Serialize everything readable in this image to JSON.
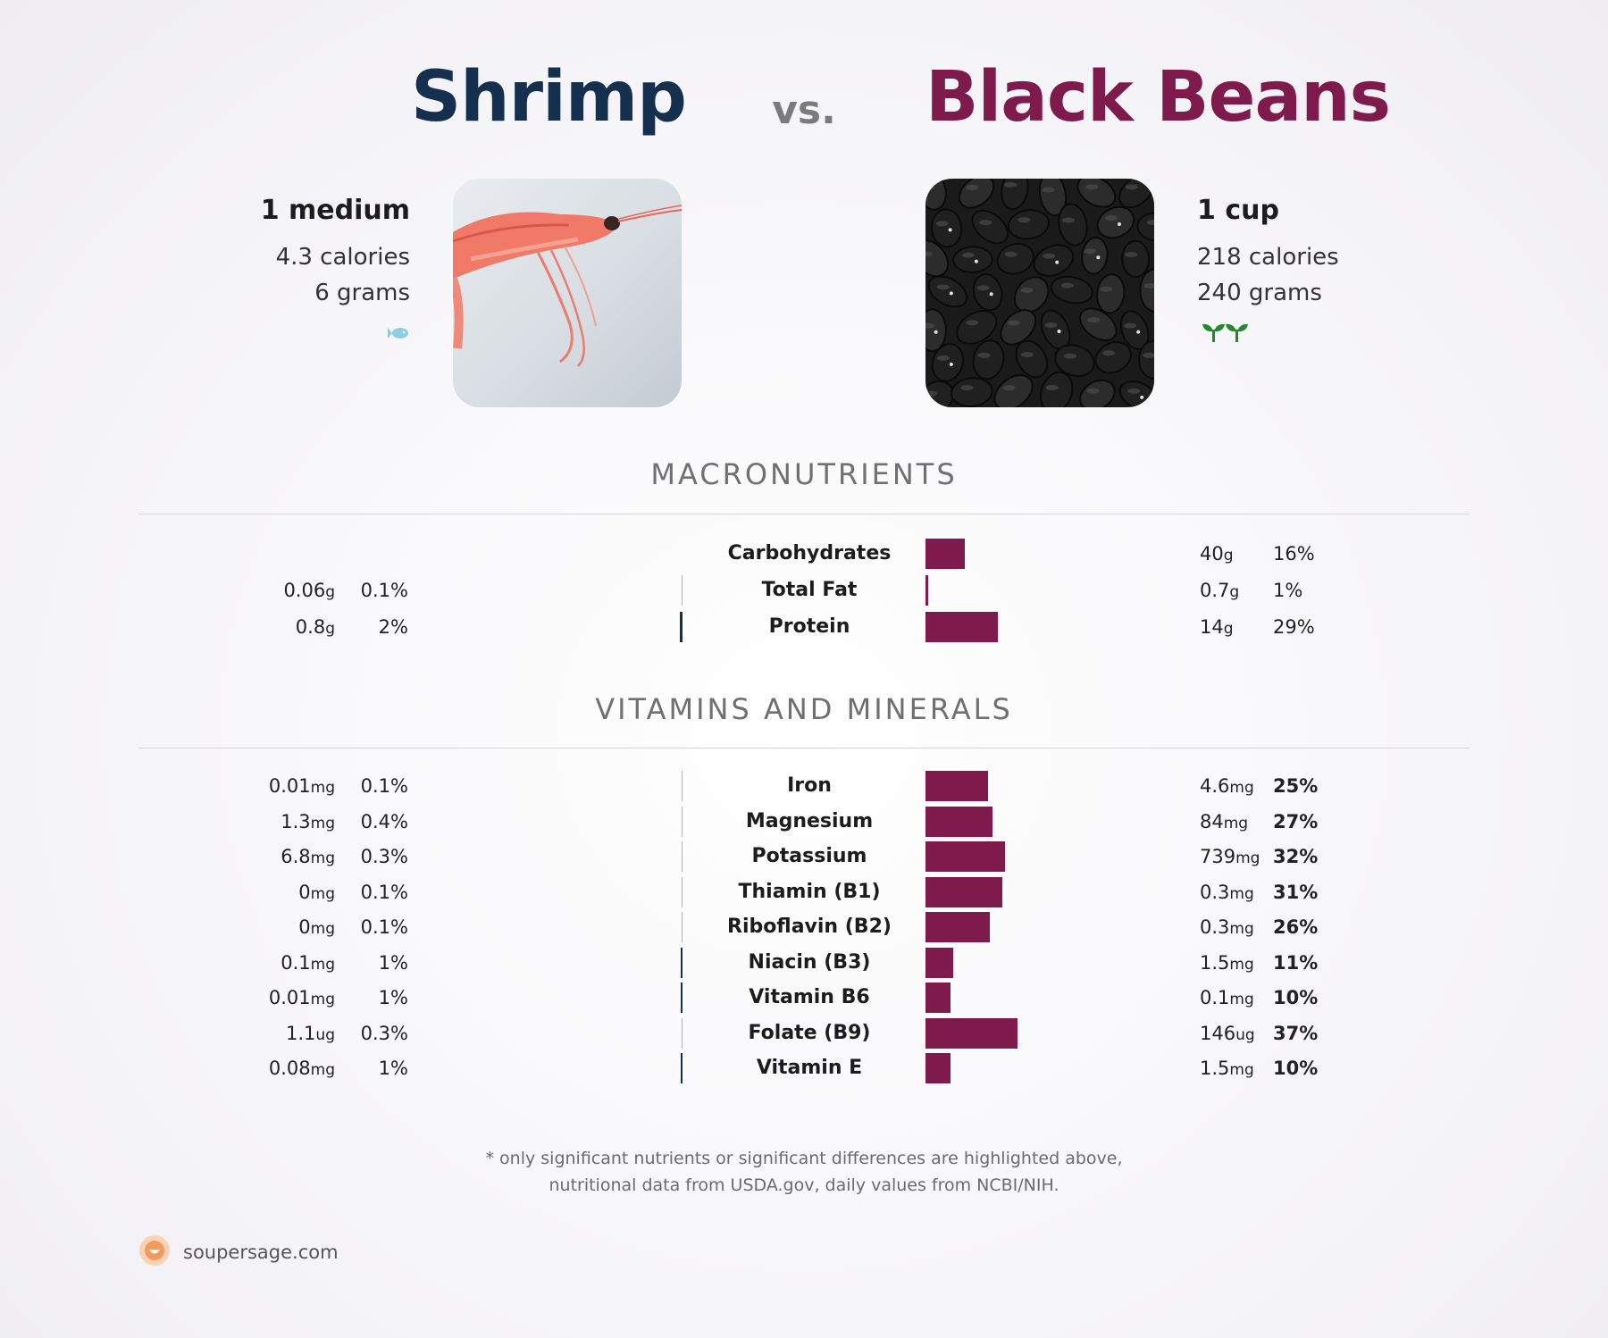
{
  "header": {
    "left_food": "Shrimp",
    "vs": "vs.",
    "right_food": "Black Beans"
  },
  "left": {
    "portion": "1 medium",
    "calories": "4.3 calories",
    "grams": "6 grams",
    "icon": "fish-icon",
    "image": "shrimp-photo"
  },
  "right": {
    "portion": "1 cup",
    "calories": "218 calories",
    "grams": "240 grams",
    "icon": "sprout-icon",
    "image": "black-beans-photo"
  },
  "sections": {
    "macros_title": "MACRONUTRIENTS",
    "vitamins_title": "VITAMINS AND MINERALS"
  },
  "colors": {
    "left_accent": "#15304f",
    "right_accent": "#7f1a4c"
  },
  "chart_data": [
    {
      "type": "bar",
      "title": "MACRONUTRIENTS",
      "categories": [
        "Carbohydrates",
        "Total Fat",
        "Protein"
      ],
      "series": [
        {
          "name": "Shrimp",
          "amounts": [
            "",
            "0.06",
            "0.8"
          ],
          "units": [
            "",
            "g",
            "g"
          ],
          "pct_labels": [
            "",
            "0.1%",
            "2%"
          ],
          "values": [
            0,
            0.1,
            2
          ]
        },
        {
          "name": "Black Beans",
          "amounts": [
            "40",
            "0.7",
            "14"
          ],
          "units": [
            "g",
            "g",
            "g"
          ],
          "pct_labels": [
            "16%",
            "1%",
            "29%"
          ],
          "values": [
            16,
            1,
            29
          ]
        }
      ]
    },
    {
      "type": "bar",
      "title": "VITAMINS AND MINERALS",
      "categories": [
        "Iron",
        "Magnesium",
        "Potassium",
        "Thiamin (B1)",
        "Riboflavin (B2)",
        "Niacin (B3)",
        "Vitamin B6",
        "Folate (B9)",
        "Vitamin E"
      ],
      "series": [
        {
          "name": "Shrimp",
          "amounts": [
            "0.01",
            "1.3",
            "6.8",
            "0",
            "0",
            "0.1",
            "0.01",
            "1.1",
            "0.08"
          ],
          "units": [
            "mg",
            "mg",
            "mg",
            "mg",
            "mg",
            "mg",
            "mg",
            "ug",
            "mg"
          ],
          "pct_labels": [
            "0.1%",
            "0.4%",
            "0.3%",
            "0.1%",
            "0.1%",
            "1%",
            "1%",
            "0.3%",
            "1%"
          ],
          "values": [
            0.1,
            0.4,
            0.3,
            0.1,
            0.1,
            1,
            1,
            0.3,
            1
          ]
        },
        {
          "name": "Black Beans",
          "amounts": [
            "4.6",
            "84",
            "739",
            "0.3",
            "0.3",
            "1.5",
            "0.1",
            "146",
            "1.5"
          ],
          "units": [
            "mg",
            "mg",
            "mg",
            "mg",
            "mg",
            "mg",
            "mg",
            "ug",
            "mg"
          ],
          "pct_labels": [
            "25%",
            "27%",
            "32%",
            "31%",
            "26%",
            "11%",
            "10%",
            "37%",
            "10%"
          ],
          "values": [
            25,
            27,
            32,
            31,
            26,
            11,
            10,
            37,
            10
          ]
        }
      ]
    }
  ],
  "footer": {
    "note_line1": "* only significant nutrients or significant differences are highlighted above,",
    "note_line2": "nutritional data from USDA.gov, daily values from NCBI/NIH.",
    "brand": "soupersage.com",
    "brand_icon": "soupersage-logo-icon"
  }
}
